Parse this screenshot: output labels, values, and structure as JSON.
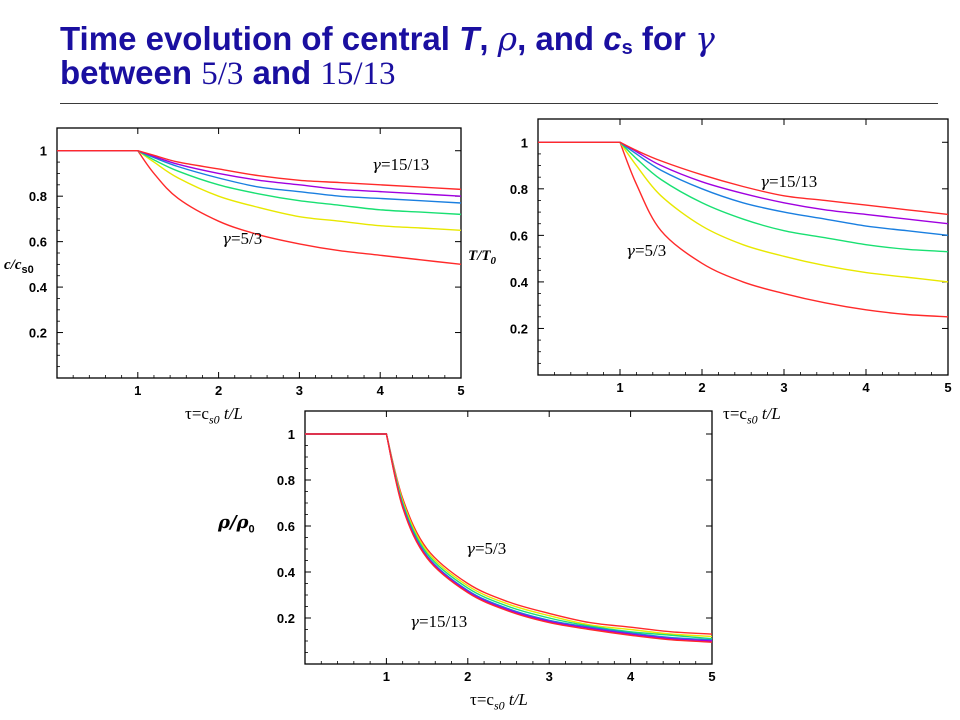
{
  "title": {
    "part1": "Time evolution of central ",
    "T": "T",
    "sep1": ", ",
    "rho": "ρ",
    "sep2": ", and ",
    "c": "c",
    "c_sub": "s",
    "sep3": " for ",
    "gamma": "γ",
    "line2_a": "between ",
    "line2_b": "5/3",
    "line2_c": " and ",
    "line2_d": "15/13"
  },
  "series_colors": [
    "#ff2a2a",
    "#e8e800",
    "#19e072",
    "#1a7fe0",
    "#a000e0",
    "#ff2a2a"
  ],
  "chart_data": [
    {
      "type": "line",
      "ylabel": {
        "main": "c/c",
        "sub": "s0"
      },
      "xlabel": {
        "pre": "τ=c",
        "sub": "s0",
        "post": " t/L"
      },
      "xlim": [
        0,
        5
      ],
      "ylim": [
        0,
        1.1
      ],
      "xticks": [
        "1",
        "2",
        "3",
        "4",
        "5"
      ],
      "yticks": [
        "0.2",
        "0.4",
        "0.6",
        "0.8",
        "1"
      ],
      "annotations": [
        {
          "gamma": "γ",
          "text": "=15/13"
        },
        {
          "gamma": "γ",
          "text": "=5/3"
        }
      ],
      "series": [
        {
          "x": [
            0,
            1,
            1.2,
            1.5,
            2,
            2.5,
            3,
            3.5,
            4,
            4.5,
            5
          ],
          "y": [
            1,
            1,
            0.9,
            0.79,
            0.69,
            0.63,
            0.59,
            0.56,
            0.54,
            0.52,
            0.5
          ]
        },
        {
          "x": [
            0,
            1,
            1.2,
            1.5,
            2,
            2.5,
            3,
            3.5,
            4,
            4.5,
            5
          ],
          "y": [
            1,
            1,
            0.95,
            0.88,
            0.8,
            0.75,
            0.71,
            0.69,
            0.67,
            0.66,
            0.65
          ]
        },
        {
          "x": [
            0,
            1,
            1.2,
            1.5,
            2,
            2.5,
            3,
            3.5,
            4,
            4.5,
            5
          ],
          "y": [
            1,
            1,
            0.96,
            0.91,
            0.85,
            0.81,
            0.78,
            0.76,
            0.74,
            0.73,
            0.72
          ]
        },
        {
          "x": [
            0,
            1,
            1.2,
            1.5,
            2,
            2.5,
            3,
            3.5,
            4,
            4.5,
            5
          ],
          "y": [
            1,
            1,
            0.97,
            0.93,
            0.88,
            0.84,
            0.82,
            0.8,
            0.79,
            0.78,
            0.77
          ]
        },
        {
          "x": [
            0,
            1,
            1.2,
            1.5,
            2,
            2.5,
            3,
            3.5,
            4,
            4.5,
            5
          ],
          "y": [
            1,
            1,
            0.975,
            0.94,
            0.9,
            0.87,
            0.85,
            0.83,
            0.82,
            0.81,
            0.8
          ]
        },
        {
          "x": [
            0,
            1,
            1.2,
            1.5,
            2,
            2.5,
            3,
            3.5,
            4,
            4.5,
            5
          ],
          "y": [
            1,
            1,
            0.98,
            0.95,
            0.92,
            0.89,
            0.87,
            0.86,
            0.85,
            0.84,
            0.83
          ]
        }
      ]
    },
    {
      "type": "line",
      "ylabel": {
        "main": "T/T",
        "sub": "0"
      },
      "xlabel": {
        "pre": "τ=c",
        "sub": "s0",
        "post": " t/L"
      },
      "xlim": [
        0,
        5
      ],
      "ylim": [
        0,
        1.1
      ],
      "xticks": [
        "1",
        "2",
        "3",
        "4",
        "5"
      ],
      "yticks": [
        "0.2",
        "0.4",
        "0.6",
        "0.8",
        "1"
      ],
      "annotations": [
        {
          "gamma": "γ",
          "text": "=15/13"
        },
        {
          "gamma": "γ",
          "text": "=5/3"
        }
      ],
      "series": [
        {
          "x": [
            0,
            1,
            1.2,
            1.5,
            2,
            2.5,
            3,
            3.5,
            4,
            4.5,
            5
          ],
          "y": [
            1,
            1,
            0.82,
            0.62,
            0.48,
            0.4,
            0.35,
            0.31,
            0.28,
            0.26,
            0.25
          ]
        },
        {
          "x": [
            0,
            1,
            1.2,
            1.5,
            2,
            2.5,
            3,
            3.5,
            4,
            4.5,
            5
          ],
          "y": [
            1,
            1,
            0.9,
            0.77,
            0.64,
            0.56,
            0.51,
            0.47,
            0.44,
            0.42,
            0.4
          ]
        },
        {
          "x": [
            0,
            1,
            1.2,
            1.5,
            2,
            2.5,
            3,
            3.5,
            4,
            4.5,
            5
          ],
          "y": [
            1,
            1,
            0.93,
            0.84,
            0.74,
            0.67,
            0.62,
            0.59,
            0.56,
            0.54,
            0.53
          ]
        },
        {
          "x": [
            0,
            1,
            1.2,
            1.5,
            2,
            2.5,
            3,
            3.5,
            4,
            4.5,
            5
          ],
          "y": [
            1,
            1,
            0.95,
            0.88,
            0.8,
            0.74,
            0.7,
            0.67,
            0.64,
            0.62,
            0.6
          ]
        },
        {
          "x": [
            0,
            1,
            1.2,
            1.5,
            2,
            2.5,
            3,
            3.5,
            4,
            4.5,
            5
          ],
          "y": [
            1,
            1,
            0.96,
            0.9,
            0.83,
            0.78,
            0.74,
            0.71,
            0.69,
            0.67,
            0.65
          ]
        },
        {
          "x": [
            0,
            1,
            1.2,
            1.5,
            2,
            2.5,
            3,
            3.5,
            4,
            4.5,
            5
          ],
          "y": [
            1,
            1,
            0.965,
            0.92,
            0.86,
            0.81,
            0.77,
            0.75,
            0.73,
            0.71,
            0.69
          ]
        }
      ]
    },
    {
      "type": "line",
      "ylabel": {
        "main": "ρ/ρ",
        "sub": "0"
      },
      "xlabel": {
        "pre": "τ=c",
        "sub": "s0",
        "post": " t/L"
      },
      "xlim": [
        0,
        5
      ],
      "ylim": [
        0,
        1.1
      ],
      "xticks": [
        "1",
        "2",
        "3",
        "4",
        "5"
      ],
      "yticks": [
        "0.2",
        "0.4",
        "0.6",
        "0.8",
        "1"
      ],
      "annotations": [
        {
          "gamma": "γ",
          "text": "=5/3"
        },
        {
          "gamma": "γ",
          "text": "=15/13"
        }
      ],
      "series": [
        {
          "x": [
            0,
            1,
            1.2,
            1.5,
            2,
            2.5,
            3,
            3.5,
            4,
            4.5,
            5
          ],
          "y": [
            1,
            1,
            0.72,
            0.5,
            0.35,
            0.27,
            0.22,
            0.18,
            0.16,
            0.14,
            0.13
          ]
        },
        {
          "x": [
            0,
            1,
            1.2,
            1.5,
            2,
            2.5,
            3,
            3.5,
            4,
            4.5,
            5
          ],
          "y": [
            1,
            1,
            0.71,
            0.49,
            0.34,
            0.26,
            0.21,
            0.17,
            0.15,
            0.13,
            0.12
          ]
        },
        {
          "x": [
            0,
            1,
            1.2,
            1.5,
            2,
            2.5,
            3,
            3.5,
            4,
            4.5,
            5
          ],
          "y": [
            1,
            1,
            0.7,
            0.48,
            0.33,
            0.25,
            0.2,
            0.165,
            0.14,
            0.125,
            0.11
          ]
        },
        {
          "x": [
            0,
            1,
            1.2,
            1.5,
            2,
            2.5,
            3,
            3.5,
            4,
            4.5,
            5
          ],
          "y": [
            1,
            1,
            0.69,
            0.47,
            0.32,
            0.24,
            0.19,
            0.16,
            0.135,
            0.115,
            0.105
          ]
        },
        {
          "x": [
            0,
            1,
            1.2,
            1.5,
            2,
            2.5,
            3,
            3.5,
            4,
            4.5,
            5
          ],
          "y": [
            1,
            1,
            0.685,
            0.465,
            0.315,
            0.235,
            0.185,
            0.155,
            0.13,
            0.11,
            0.1
          ]
        },
        {
          "x": [
            0,
            1,
            1.2,
            1.5,
            2,
            2.5,
            3,
            3.5,
            4,
            4.5,
            5
          ],
          "y": [
            1,
            1,
            0.68,
            0.46,
            0.31,
            0.23,
            0.18,
            0.15,
            0.125,
            0.105,
            0.095
          ]
        }
      ]
    }
  ]
}
